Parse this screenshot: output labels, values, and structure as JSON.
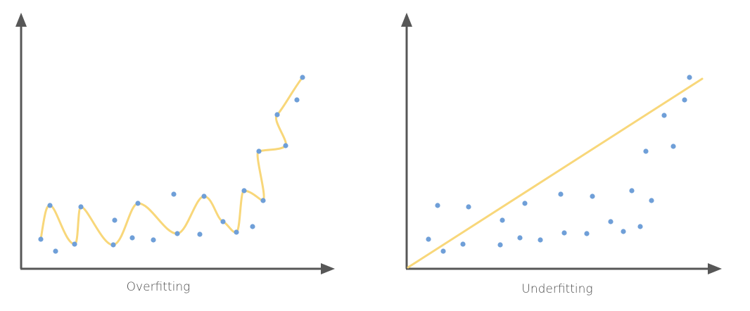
{
  "panels": [
    {
      "caption": "Overfitting",
      "axis_color": "#575757",
      "point_color": "#6f9fd8",
      "curve_color": "#f8d77a",
      "fit": "interpolating-curve"
    },
    {
      "caption": "Underfitting",
      "axis_color": "#575757",
      "point_color": "#6f9fd8",
      "curve_color": "#f8d77a",
      "fit": "straight-line"
    }
  ]
}
